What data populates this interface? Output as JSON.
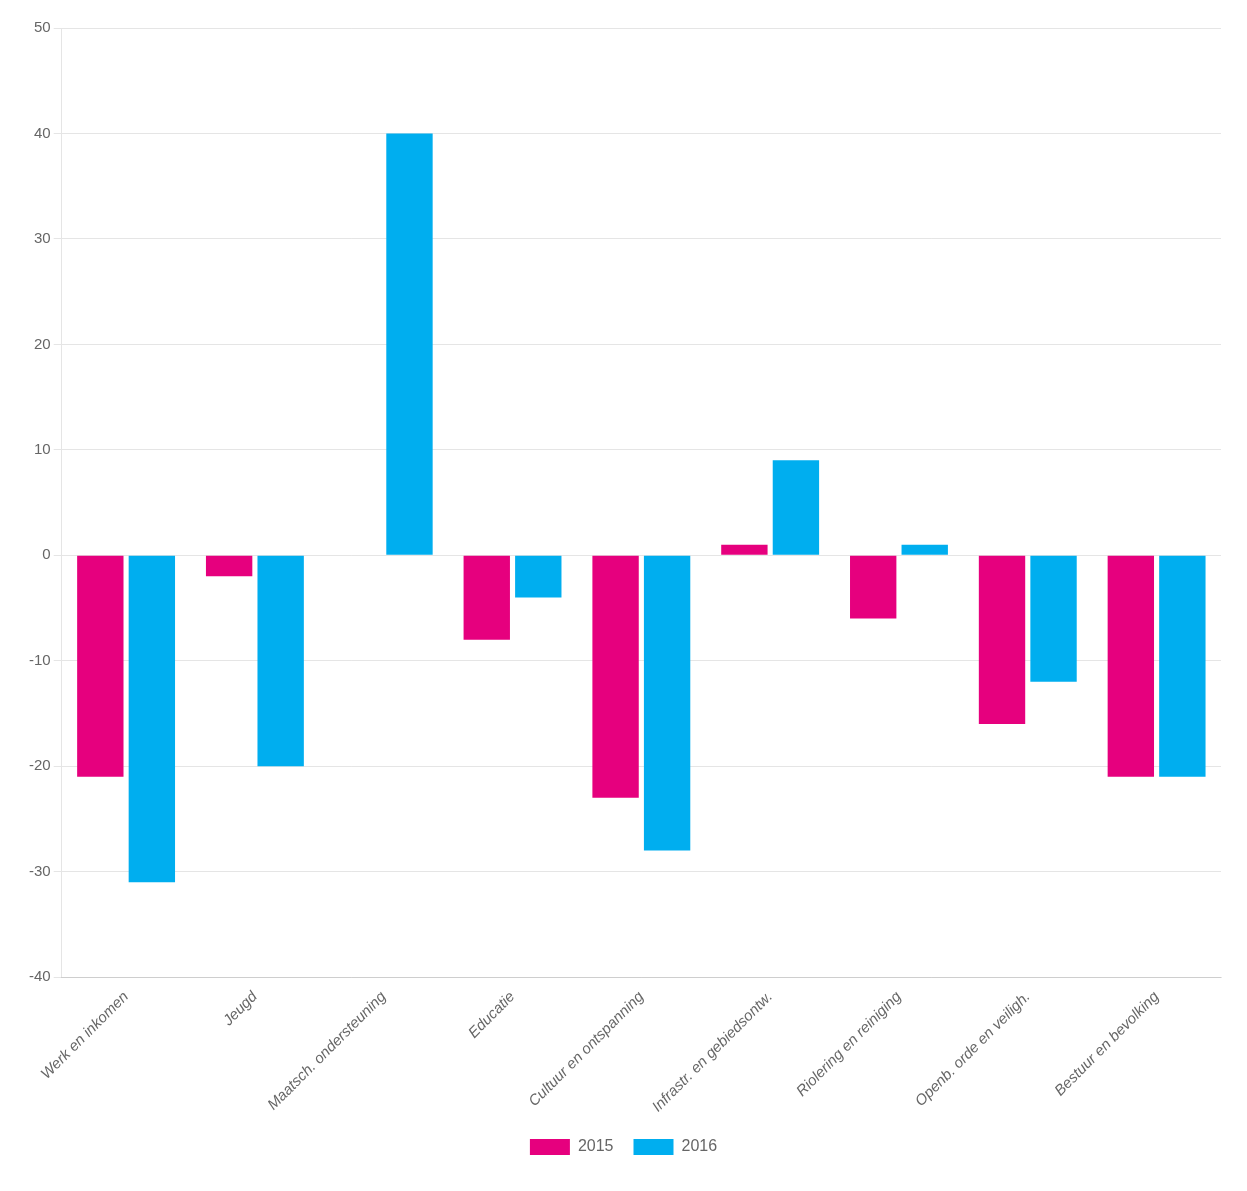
{
  "chart_data": {
    "type": "bar",
    "categories": [
      "Werk en inkomen",
      "Jeugd",
      "Maatsch. ondersteuning",
      "Educatie",
      "Cultuur en ontspanning",
      "Infrastr. en gebiedsontw.",
      "Riolering en reiniging",
      "Openb. orde en veiligh.",
      "Bestuur en bevolking"
    ],
    "series": [
      {
        "name": "2015",
        "color": "#e6007e",
        "values": [
          -21,
          -2,
          0,
          -8,
          -23,
          1,
          -6,
          -16,
          -21
        ]
      },
      {
        "name": "2016",
        "color": "#00aeef",
        "values": [
          -31,
          -20,
          40,
          -4,
          -28,
          9,
          1,
          -12,
          -21
        ]
      }
    ],
    "ylim": [
      -40,
      50
    ],
    "yticks": [
      -40,
      -30,
      -20,
      -10,
      0,
      10,
      20,
      30,
      40,
      50
    ],
    "grid": true,
    "legend": "bottom"
  }
}
